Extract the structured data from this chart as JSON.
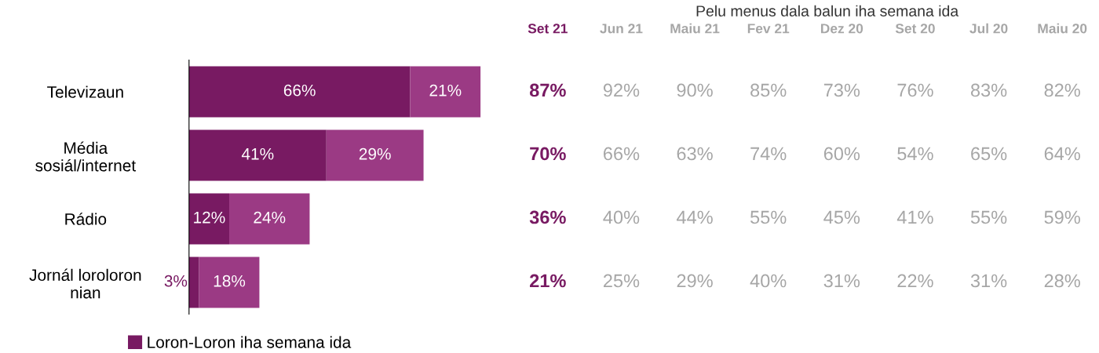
{
  "chart_data": [
    {
      "type": "bar",
      "orientation": "horizontal",
      "stacked": true,
      "categories": [
        "Televizaun",
        "Média\nsosiál/internet",
        "Rádio",
        "Jornál loroloron\nnian"
      ],
      "series": [
        {
          "name": "Loron-Loron iha semana ida",
          "color": "#781a62",
          "values": [
            66,
            41,
            12,
            3
          ],
          "value_labels": [
            "66%",
            "41%",
            "12%",
            "3%"
          ]
        },
        {
          "color": "#9b3a84",
          "values": [
            21,
            29,
            24,
            18
          ],
          "value_labels": [
            "21%",
            "29%",
            "24%",
            "18%"
          ]
        }
      ],
      "tick_labels": "y",
      "legend": "bottom left",
      "grid": false
    },
    {
      "type": "heatmap",
      "title": "Pelu menus dala balun iha semana ida",
      "categories": [
        "Set 21",
        "Jun 21",
        "Maiu 21",
        "Fev 21",
        "Dez 20",
        "Set 20",
        "Jul 20",
        "Maiu 20"
      ],
      "y_categories": [
        null,
        null,
        null,
        null
      ],
      "colors": [
        "#781a62",
        "#a6a6a6",
        "#a6a6a6",
        "#a6a6a6",
        "#a6a6a6",
        "#a6a6a6",
        "#a6a6a6",
        "#a6a6a6"
      ],
      "cells": [
        [
          87,
          92,
          90,
          85,
          73,
          76,
          83,
          82
        ],
        [
          70,
          66,
          63,
          74,
          60,
          54,
          65,
          64
        ],
        [
          36,
          40,
          44,
          55,
          45,
          41,
          55,
          59
        ],
        [
          21,
          25,
          29,
          40,
          31,
          22,
          31,
          28
        ]
      ],
      "cell_labels": [
        [
          "87%",
          "92%",
          "90%",
          "85%",
          "73%",
          "76%",
          "83%",
          "82%"
        ],
        [
          "70%",
          "66%",
          "63%",
          "74%",
          "60%",
          "54%",
          "65%",
          "64%"
        ],
        [
          "36%",
          "40%",
          "44%",
          "55%",
          "45%",
          "41%",
          "55%",
          "59%"
        ],
        [
          "21%",
          "25%",
          "29%",
          "40%",
          "31%",
          "22%",
          "31%",
          "28%"
        ]
      ]
    }
  ]
}
